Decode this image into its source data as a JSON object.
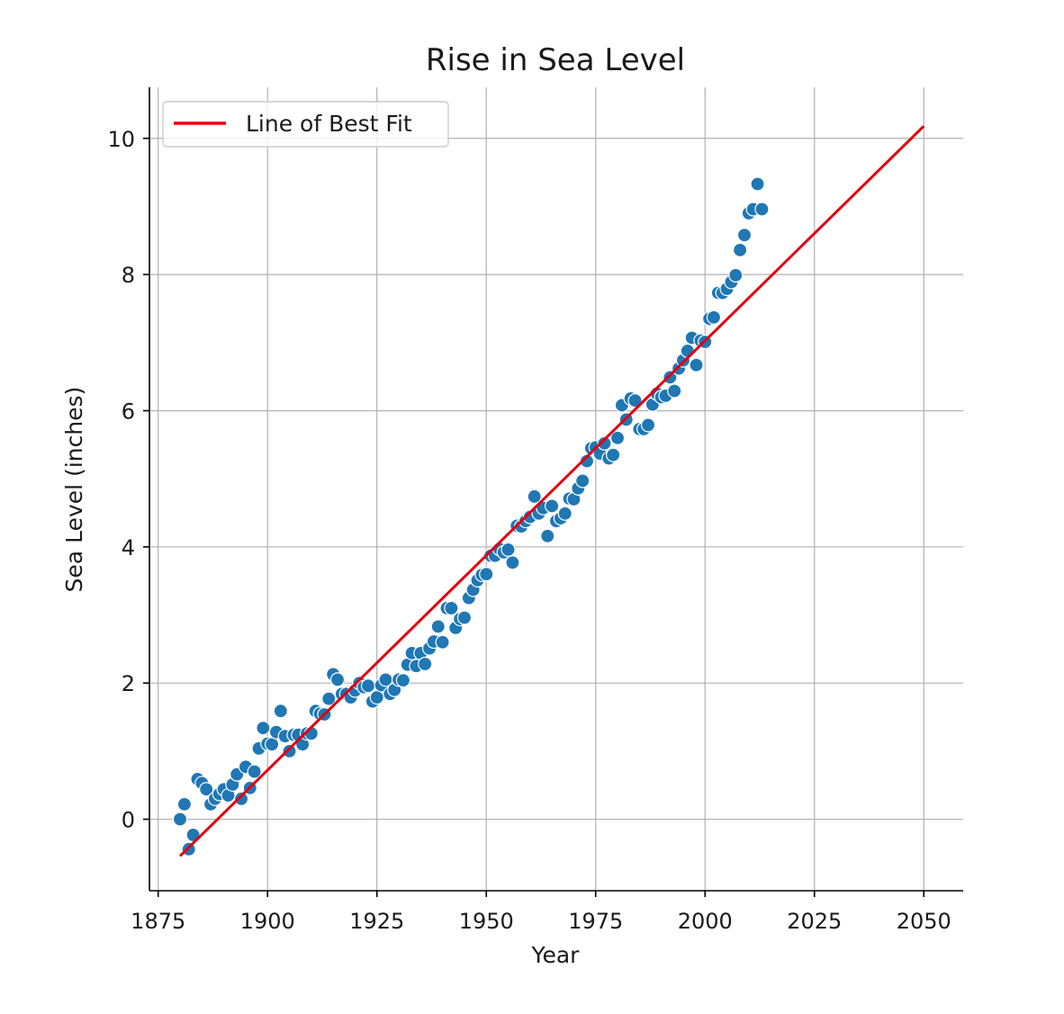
{
  "chart_data": {
    "type": "scatter",
    "title": "Rise in Sea Level",
    "xlabel": "Year",
    "ylabel": "Sea Level (inches)",
    "xlim": [
      1873,
      2059
    ],
    "ylim": [
      -1.05,
      10.75
    ],
    "xticks": [
      1875,
      1900,
      1925,
      1950,
      1975,
      2000,
      2025,
      2050
    ],
    "yticks": [
      0,
      2,
      4,
      6,
      8,
      10
    ],
    "grid": true,
    "legend": {
      "position": "upper-left",
      "entries": [
        "Line of Best Fit"
      ]
    },
    "colors": {
      "points": "#1f77b4",
      "points_edge": "#ffffff",
      "fit_line": "#e3000f"
    },
    "series": [
      {
        "type": "scatter",
        "x": [
          1880,
          1881,
          1882,
          1883,
          1884,
          1885,
          1886,
          1887,
          1888,
          1889,
          1890,
          1891,
          1892,
          1893,
          1894,
          1895,
          1896,
          1897,
          1898,
          1899,
          1900,
          1901,
          1902,
          1903,
          1904,
          1905,
          1906,
          1907,
          1908,
          1909,
          1910,
          1911,
          1912,
          1913,
          1914,
          1915,
          1916,
          1917,
          1918,
          1919,
          1920,
          1921,
          1922,
          1923,
          1924,
          1925,
          1926,
          1927,
          1928,
          1929,
          1930,
          1931,
          1932,
          1933,
          1934,
          1935,
          1936,
          1937,
          1938,
          1939,
          1940,
          1941,
          1942,
          1943,
          1944,
          1945,
          1946,
          1947,
          1948,
          1949,
          1950,
          1951,
          1952,
          1953,
          1954,
          1955,
          1956,
          1957,
          1958,
          1959,
          1960,
          1961,
          1962,
          1963,
          1964,
          1965,
          1966,
          1967,
          1968,
          1969,
          1970,
          1971,
          1972,
          1973,
          1974,
          1975,
          1976,
          1977,
          1978,
          1979,
          1980,
          1981,
          1982,
          1983,
          1984,
          1985,
          1986,
          1987,
          1988,
          1989,
          1990,
          1991,
          1992,
          1993,
          1994,
          1995,
          1996,
          1997,
          1998,
          1999,
          2000,
          2001,
          2002,
          2003,
          2004,
          2005,
          2006,
          2007,
          2008,
          2009,
          2010,
          2011,
          2012,
          2013
        ],
        "y": [
          0.0,
          0.22,
          -0.44,
          -0.23,
          0.59,
          0.53,
          0.44,
          0.22,
          0.3,
          0.37,
          0.44,
          0.35,
          0.51,
          0.66,
          0.3,
          0.77,
          0.46,
          0.7,
          1.04,
          1.34,
          1.11,
          1.1,
          1.28,
          1.59,
          1.22,
          1.0,
          1.24,
          1.24,
          1.1,
          1.26,
          1.26,
          1.59,
          1.55,
          1.54,
          1.77,
          2.13,
          2.05,
          1.84,
          1.84,
          1.79,
          1.89,
          2.0,
          1.94,
          1.96,
          1.73,
          1.79,
          1.97,
          2.05,
          1.84,
          1.9,
          2.05,
          2.04,
          2.27,
          2.44,
          2.25,
          2.44,
          2.28,
          2.51,
          2.61,
          2.83,
          2.6,
          3.1,
          3.1,
          2.81,
          2.94,
          2.96,
          3.25,
          3.37,
          3.51,
          3.59,
          3.6,
          3.87,
          3.87,
          3.97,
          3.92,
          3.96,
          3.77,
          4.31,
          4.3,
          4.38,
          4.44,
          4.74,
          4.49,
          4.57,
          4.16,
          4.6,
          4.38,
          4.42,
          4.49,
          4.71,
          4.7,
          4.86,
          4.97,
          5.26,
          5.45,
          5.46,
          5.37,
          5.52,
          5.3,
          5.35,
          5.6,
          6.08,
          5.87,
          6.18,
          6.15,
          5.73,
          5.73,
          5.79,
          6.09,
          6.25,
          6.2,
          6.22,
          6.49,
          6.29,
          6.62,
          6.74,
          6.88,
          7.07,
          6.67,
          7.03,
          7.01,
          7.35,
          7.37,
          7.73,
          7.73,
          7.79,
          7.89,
          7.99,
          8.36,
          8.58,
          8.9,
          8.96,
          9.33,
          8.96
        ]
      },
      {
        "type": "line",
        "name": "Line of Best Fit",
        "x": [
          1880,
          2050
        ],
        "y": [
          -0.54,
          10.18
        ]
      }
    ]
  }
}
